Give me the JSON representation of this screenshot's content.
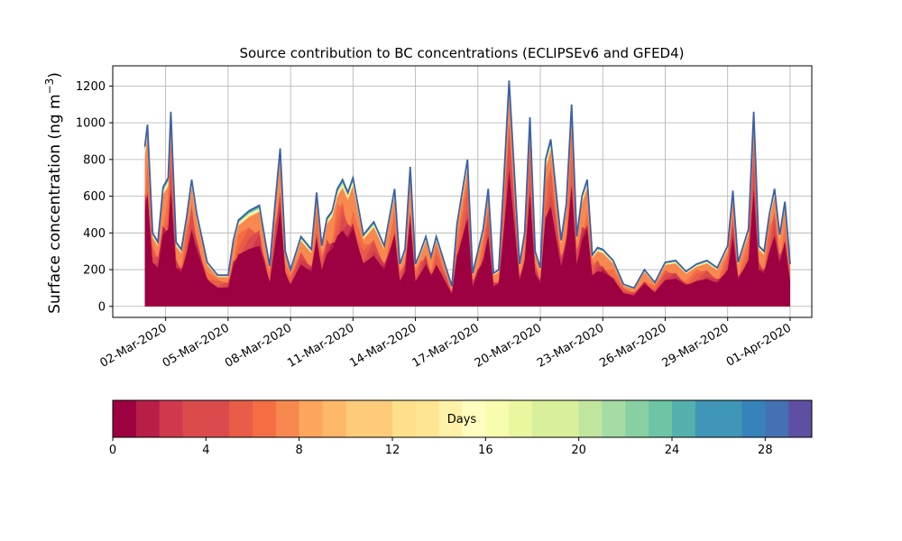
{
  "chart_data": {
    "type": "area",
    "title": "Source contribution to BC concentrations (ECLIPSEv6 and GFED4)",
    "ylabel": "Surface concentration (ng m",
    "ylabel_sup": "−3",
    "ylabel_close": ")",
    "xlabel": "",
    "x_start": "2020-03-01",
    "x_end": "2020-04-01",
    "xlim": [
      "2020-02-28T11:00",
      "2020-04-02T01:00"
    ],
    "ylim": [
      -60,
      1310
    ],
    "yticks": [
      0,
      200,
      400,
      600,
      800,
      1000,
      1200
    ],
    "xticks": [
      "02-Mar-2020",
      "05-Mar-2020",
      "08-Mar-2020",
      "11-Mar-2020",
      "14-Mar-2020",
      "17-Mar-2020",
      "20-Mar-2020",
      "23-Mar-2020",
      "26-Mar-2020",
      "29-Mar-2020",
      "01-Apr-2020"
    ],
    "grid": true,
    "stacked_series_count": 30,
    "series_dimension": "source age (days)",
    "total_concentration": {
      "x": [
        "2020-03-01T00:00",
        "2020-03-01T03:00",
        "2020-03-01T09:00",
        "2020-03-01T15:00",
        "2020-03-01T21:00",
        "2020-03-02T03:00",
        "2020-03-02T06:00",
        "2020-03-02T12:00",
        "2020-03-02T18:00",
        "2020-03-03T00:00",
        "2020-03-03T06:00",
        "2020-03-03T12:00",
        "2020-03-04T00:00",
        "2020-03-04T12:00",
        "2020-03-05T00:00",
        "2020-03-05T06:00",
        "2020-03-05T12:00",
        "2020-03-06T00:00",
        "2020-03-06T12:00",
        "2020-03-06T18:00",
        "2020-03-07T00:00",
        "2020-03-07T06:00",
        "2020-03-07T12:00",
        "2020-03-07T18:00",
        "2020-03-08T00:00",
        "2020-03-08T12:00",
        "2020-03-09T00:00",
        "2020-03-09T06:00",
        "2020-03-09T12:00",
        "2020-03-09T18:00",
        "2020-03-10T00:00",
        "2020-03-10T06:00",
        "2020-03-10T12:00",
        "2020-03-10T18:00",
        "2020-03-11T00:00",
        "2020-03-11T12:00",
        "2020-03-12T00:00",
        "2020-03-12T12:00",
        "2020-03-13T00:00",
        "2020-03-13T06:00",
        "2020-03-13T12:00",
        "2020-03-13T18:00",
        "2020-03-14T00:00",
        "2020-03-14T06:00",
        "2020-03-14T12:00",
        "2020-03-14T18:00",
        "2020-03-15T00:00",
        "2020-03-15T12:00",
        "2020-03-15T18:00",
        "2020-03-16T00:00",
        "2020-03-16T12:00",
        "2020-03-16T18:00",
        "2020-03-17T00:00",
        "2020-03-17T06:00",
        "2020-03-17T12:00",
        "2020-03-17T18:00",
        "2020-03-18T00:00",
        "2020-03-18T06:00",
        "2020-03-18T12:00",
        "2020-03-19T00:00",
        "2020-03-19T06:00",
        "2020-03-19T12:00",
        "2020-03-19T18:00",
        "2020-03-20T00:00",
        "2020-03-20T06:00",
        "2020-03-20T12:00",
        "2020-03-21T00:00",
        "2020-03-21T06:00",
        "2020-03-21T12:00",
        "2020-03-21T18:00",
        "2020-03-22T00:00",
        "2020-03-22T06:00",
        "2020-03-22T12:00",
        "2020-03-22T18:00",
        "2020-03-23T00:00",
        "2020-03-23T12:00",
        "2020-03-24T00:00",
        "2020-03-24T12:00",
        "2020-03-25T00:00",
        "2020-03-25T12:00",
        "2020-03-26T00:00",
        "2020-03-26T12:00",
        "2020-03-27T00:00",
        "2020-03-27T12:00",
        "2020-03-28T00:00",
        "2020-03-28T12:00",
        "2020-03-28T18:00",
        "2020-03-29T00:00",
        "2020-03-29T06:00",
        "2020-03-29T12:00",
        "2020-03-30T00:00",
        "2020-03-30T06:00",
        "2020-03-30T12:00",
        "2020-03-30T18:00",
        "2020-03-31T00:00",
        "2020-03-31T06:00",
        "2020-03-31T12:00",
        "2020-03-31T18:00",
        "2020-04-01T00:00"
      ],
      "y": [
        870,
        990,
        400,
        350,
        650,
        700,
        1060,
        350,
        310,
        480,
        690,
        500,
        240,
        170,
        170,
        360,
        470,
        520,
        550,
        380,
        220,
        550,
        860,
        300,
        200,
        380,
        310,
        620,
        330,
        480,
        520,
        640,
        690,
        620,
        700,
        390,
        460,
        330,
        640,
        230,
        310,
        760,
        230,
        300,
        380,
        270,
        380,
        200,
        110,
        450,
        800,
        180,
        300,
        420,
        640,
        180,
        200,
        700,
        1230,
        230,
        400,
        1030,
        300,
        210,
        800,
        910,
        360,
        560,
        1100,
        380,
        600,
        690,
        280,
        320,
        310,
        250,
        120,
        100,
        200,
        130,
        240,
        250,
        190,
        230,
        250,
        210,
        270,
        330,
        630,
        240,
        420,
        1060,
        330,
        300,
        500,
        640,
        390,
        570,
        230
      ]
    },
    "colorbar": {
      "label": "Days",
      "range": [
        0,
        30
      ],
      "ticks": [
        0,
        4,
        8,
        12,
        16,
        20,
        24,
        28
      ],
      "levels": 30,
      "colormap": "Spectral",
      "colors": [
        "#9e0142",
        "#b81e48",
        "#d0384e",
        "#dc4b4c",
        "#e95c47",
        "#f46d43",
        "#f78850",
        "#fca55d",
        "#fdb768",
        "#fdcb7a",
        "#fedf8b",
        "#fee593",
        "#fff1a8",
        "#fffebe",
        "#f7fcae",
        "#eaf79f",
        "#d8ef9b",
        "#c0e59f",
        "#a5dba4",
        "#88cfa4",
        "#6dc5a5",
        "#55b0ad",
        "#3f96b7",
        "#3682ba",
        "#4471b3",
        "#5e4fa2"
      ]
    },
    "line_color": "#3a62a8"
  }
}
